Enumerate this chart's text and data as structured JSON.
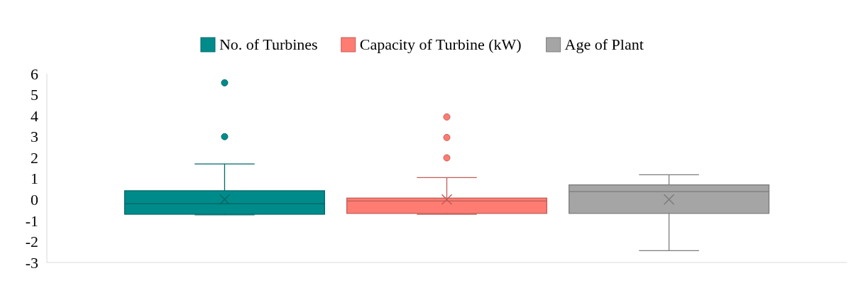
{
  "chart_data": {
    "type": "box",
    "categories": [
      null
    ],
    "ylim": [
      -3,
      6
    ],
    "yticks": [
      -3,
      -2,
      -1,
      0,
      1,
      2,
      3,
      4,
      5,
      6
    ],
    "grid": false,
    "legend": "top",
    "marker": "circle",
    "series": [
      {
        "name": "No. of Turbines",
        "color": "#008b8b",
        "boxes": [
          {
            "low": -0.73,
            "q1": -0.7,
            "median": -0.2,
            "q3": 0.42,
            "high": 1.7,
            "mean": 0,
            "outliers": [
              5.57,
              3.0
            ]
          }
        ]
      },
      {
        "name": "Capacity of Turbine (kW)",
        "color": "#ff7c73",
        "boxes": [
          {
            "low": -0.7,
            "q1": -0.66,
            "median": -0.07,
            "q3": 0.07,
            "high": 1.05,
            "mean": 0,
            "outliers": [
              3.94,
              2.96,
              1.99
            ]
          }
        ]
      },
      {
        "name": "Age of Plant",
        "color": "#a5a5a5",
        "boxes": [
          {
            "low": -2.44,
            "q1": -0.66,
            "median": 0.38,
            "q3": 0.7,
            "high": 1.18,
            "mean": 0
          }
        ]
      }
    ]
  }
}
